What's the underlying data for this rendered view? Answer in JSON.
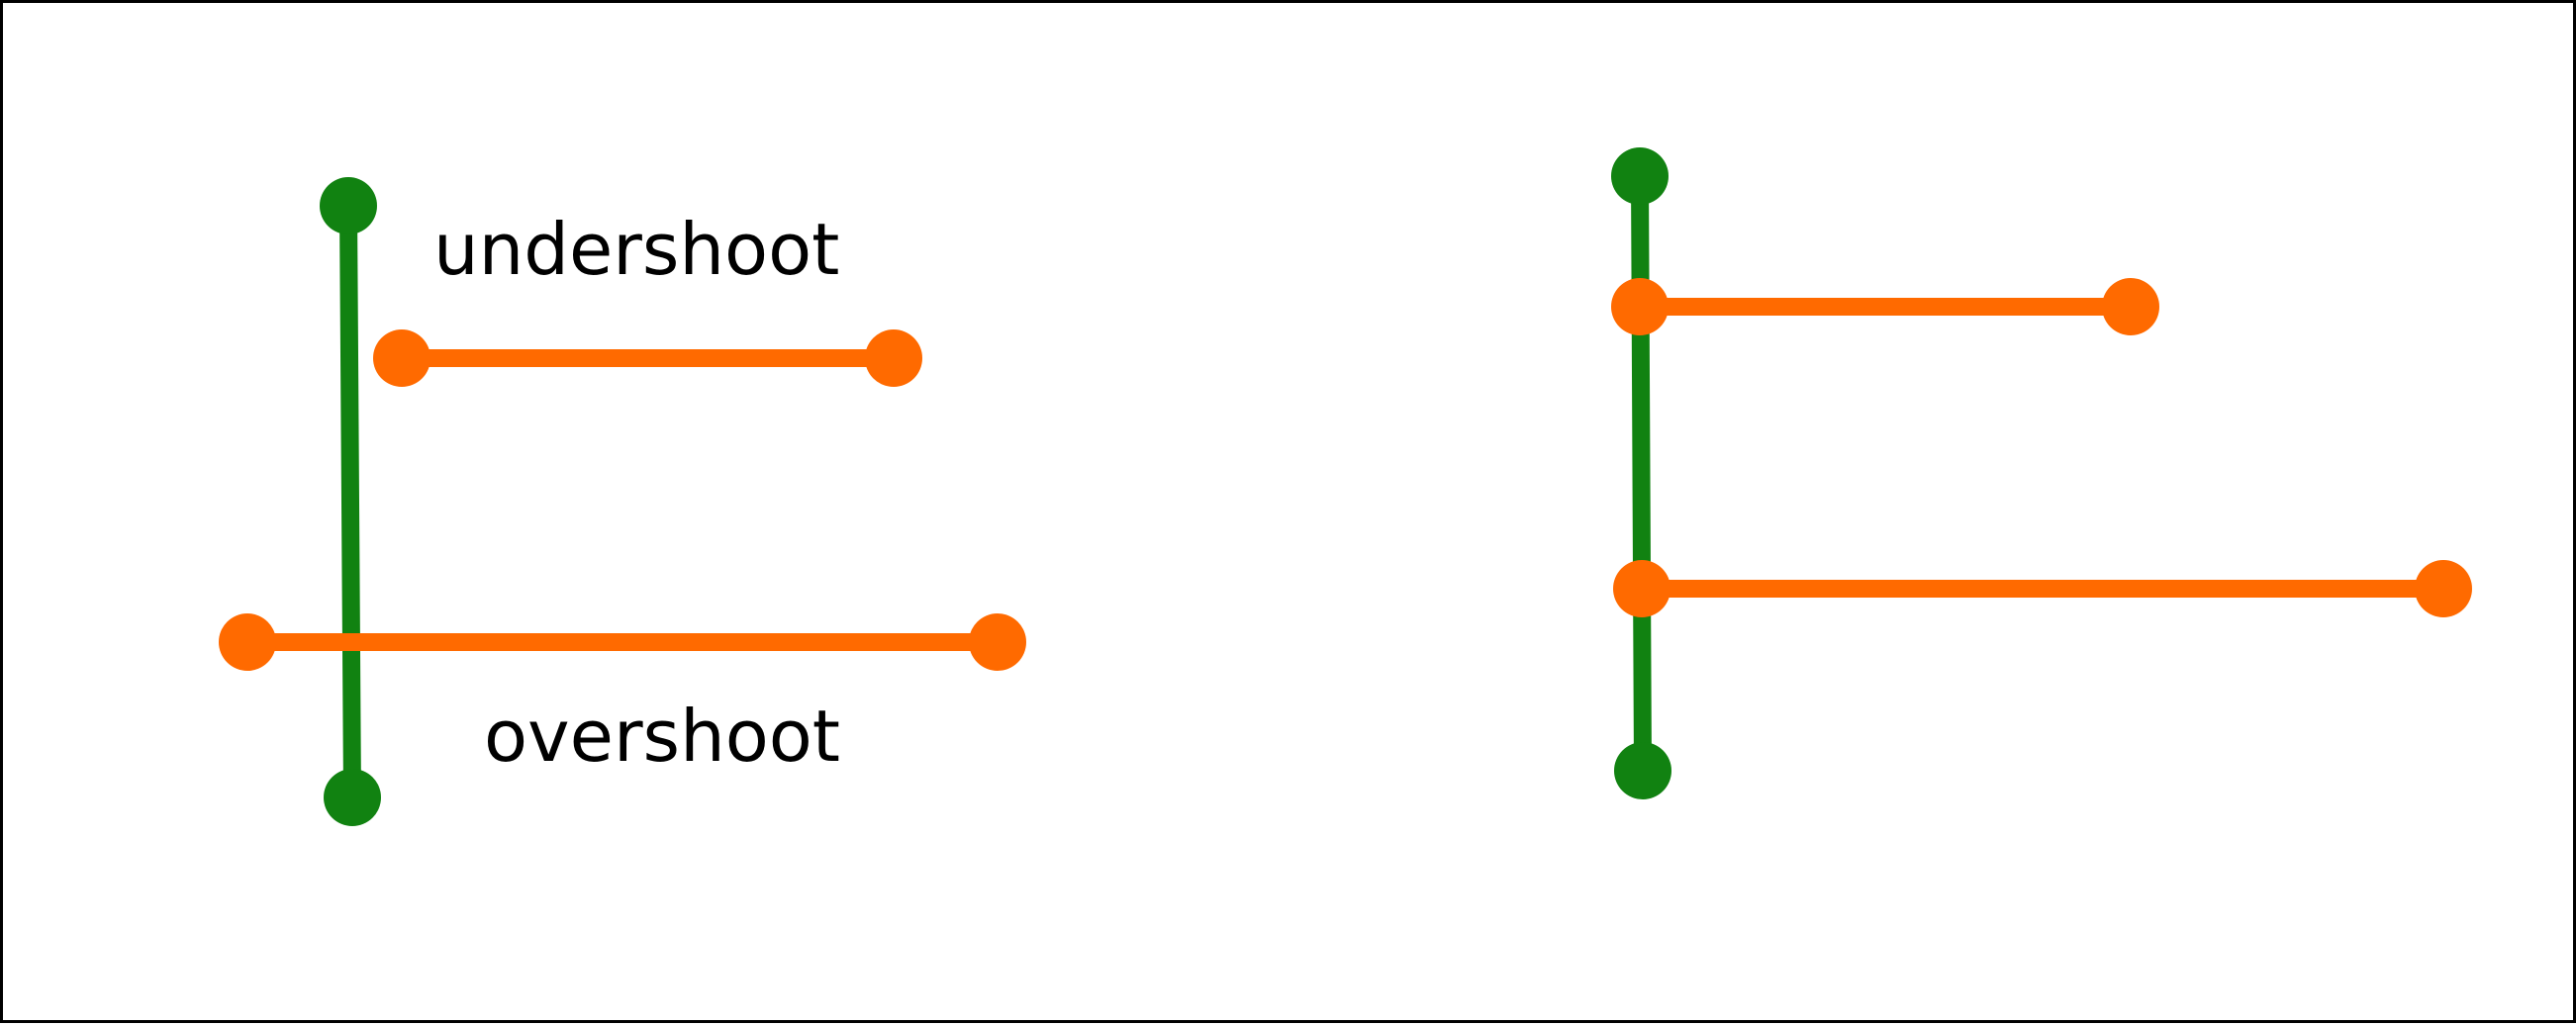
{
  "colors": {
    "vertical_segment": "#118211",
    "horizontal_segment": "#FF6A00",
    "label": "#000000",
    "border": "#000000",
    "background": "#FFFFFF"
  },
  "labels": {
    "undershoot": "undershoot",
    "overshoot": "overshoot"
  }
}
